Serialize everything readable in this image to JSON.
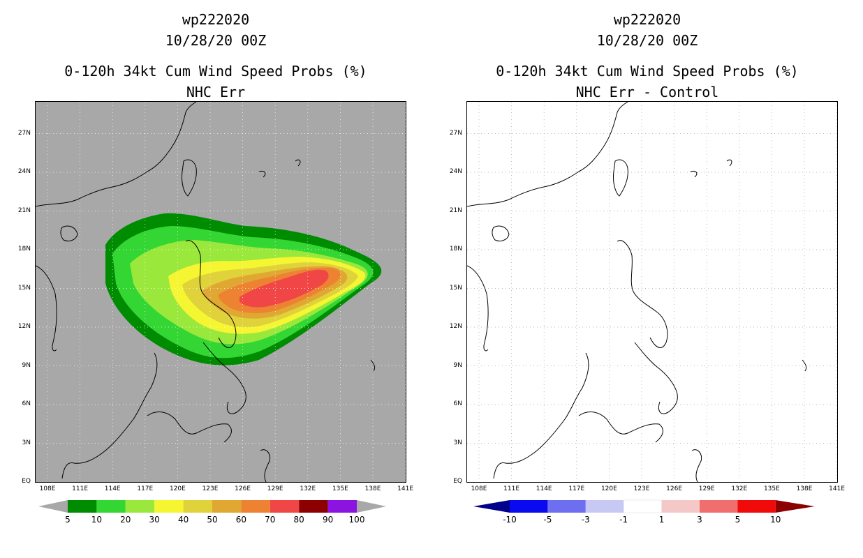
{
  "left_panel": {
    "title_line1": "wp222020",
    "title_line2": "10/28/20 00Z",
    "title_line3": "0-120h 34kt Cum Wind Speed Probs (%)",
    "title_line4": "NHC Err",
    "background_color": "#a8a8a8",
    "colorbar": {
      "labels": [
        "5",
        "10",
        "20",
        "30",
        "40",
        "50",
        "60",
        "70",
        "80",
        "90",
        "100"
      ],
      "colors": [
        "#008c00",
        "#33d633",
        "#9be83c",
        "#f5f532",
        "#e0d23a",
        "#e0a832",
        "#ec8232",
        "#f04646",
        "#8c0000",
        "#8c14e0"
      ]
    }
  },
  "right_panel": {
    "title_line1": "wp222020",
    "title_line2": "10/28/20 00Z",
    "title_line3": "0-120h 34kt Cum Wind Speed Probs (%)",
    "title_line4": "NHC Err - Control",
    "background_color": "#ffffff",
    "colorbar": {
      "labels": [
        "-10",
        "-5",
        "-3",
        "-1",
        "1",
        "3",
        "5",
        "10"
      ],
      "colors": [
        "#00008c",
        "#0a0af0",
        "#6e6ef0",
        "#c8c8f5",
        "#ffffff",
        "#f5c8c8",
        "#f06e6e",
        "#f00a0a",
        "#8c0000"
      ]
    }
  },
  "axes": {
    "y_ticks": [
      "EQ",
      "3N",
      "6N",
      "9N",
      "12N",
      "15N",
      "18N",
      "21N",
      "24N",
      "27N"
    ],
    "x_ticks": [
      "108E",
      "111E",
      "114E",
      "117E",
      "120E",
      "123E",
      "126E",
      "129E",
      "132E",
      "135E",
      "138E",
      "141E"
    ]
  }
}
